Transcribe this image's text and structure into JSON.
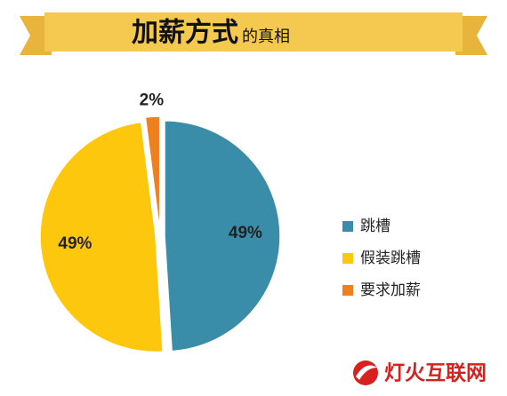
{
  "chart_data": {
    "type": "pie",
    "title": "加薪方式",
    "subtitle": "的真相",
    "categories": [
      "跳槽",
      "假装跳槽",
      "要求加薪"
    ],
    "values": [
      49,
      49,
      2
    ],
    "value_labels": [
      "49%",
      "49%",
      "2%"
    ],
    "colors": [
      "#3a8da8",
      "#fcc70d",
      "#f07f1e"
    ],
    "legend": "right",
    "watermark": "灯火互联网"
  }
}
